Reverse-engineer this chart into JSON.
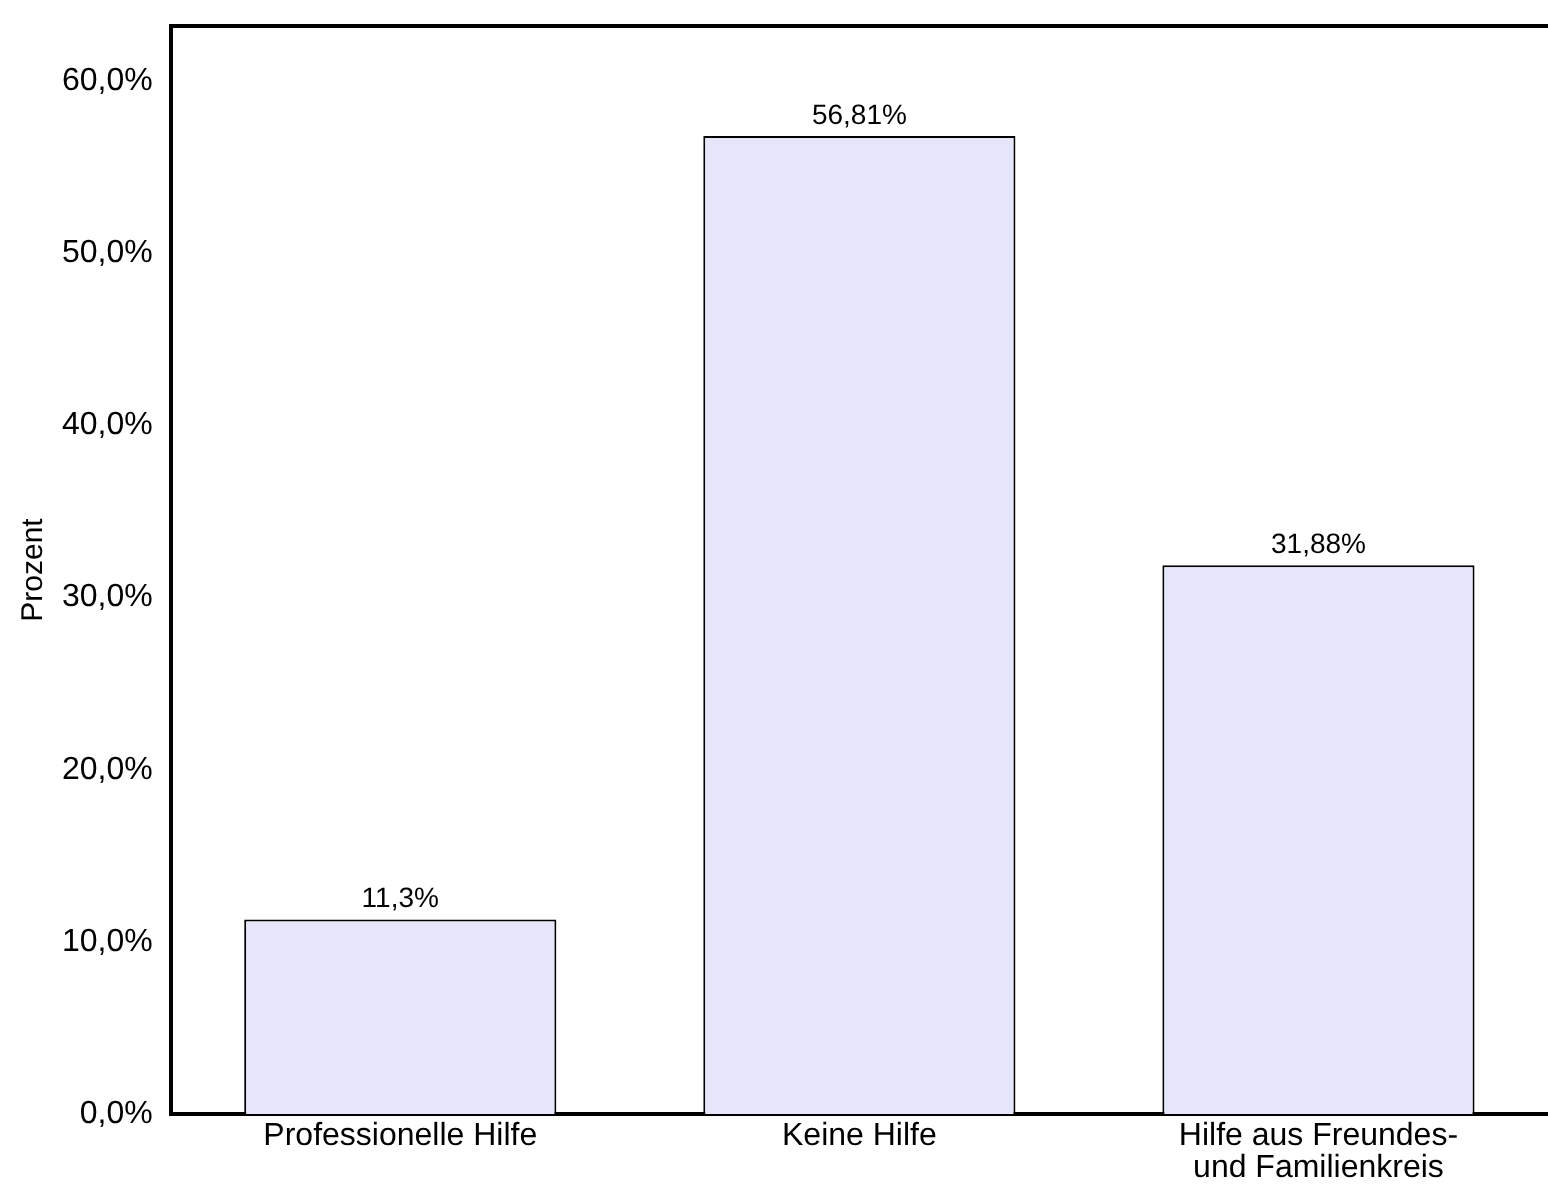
{
  "chart_data": {
    "type": "bar",
    "ylabel": "Prozent",
    "categories": [
      "Professionelle Hilfe",
      "Keine Hilfe",
      "Hilfe aus Freundes- und Familienkreis"
    ],
    "values": [
      11.3,
      56.81,
      31.88
    ],
    "color": "#e6e6fa",
    "value_labels": [
      "11,3%",
      "56,81%",
      "31,88%"
    ],
    "ylim": [
      0,
      63.2
    ],
    "yticks": [
      {
        "value": 0,
        "label": "0,0%"
      },
      {
        "value": 10,
        "label": "10,0%"
      },
      {
        "value": 20,
        "label": "20,0%"
      },
      {
        "value": 30,
        "label": "30,0%"
      },
      {
        "value": 40,
        "label": "40,0%"
      },
      {
        "value": 50,
        "label": "50,0%"
      },
      {
        "value": 60,
        "label": "60,0%"
      }
    ],
    "grid": false,
    "legend": false
  }
}
